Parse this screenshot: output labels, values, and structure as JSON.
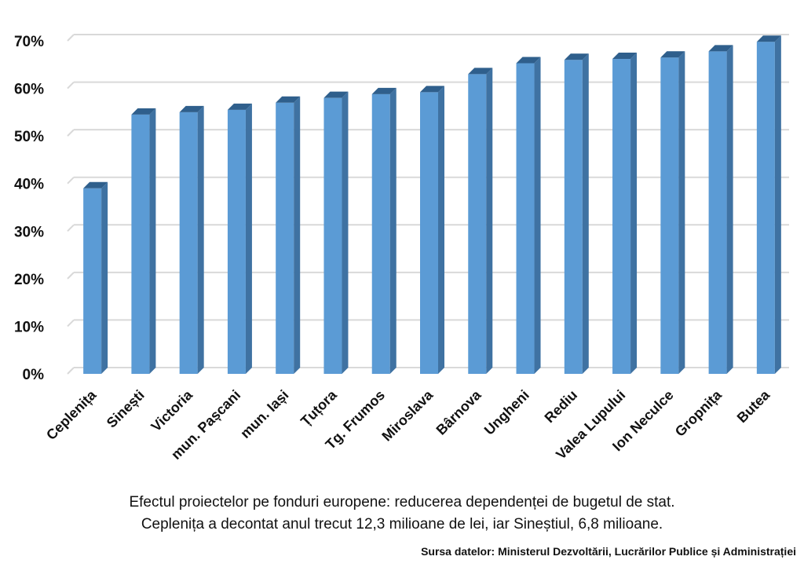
{
  "chart_data": {
    "type": "bar",
    "categories": [
      "Ceplenița",
      "Sinești",
      "Victoria",
      "mun. Pașcani",
      "mun. Iași",
      "Țuțora",
      "Tg. Frumos",
      "Miroslava",
      "Bârnova",
      "Ungheni",
      "Rediu",
      "Valea Lupului",
      "Ion Neculce",
      "Gropnița",
      "Butea"
    ],
    "values": [
      39,
      54.5,
      55,
      55.5,
      57,
      58,
      58.8,
      59.2,
      63,
      65.3,
      66,
      66.2,
      66.5,
      67.8,
      69.8
    ],
    "ylim": [
      0,
      70
    ],
    "yticks": [
      "0%",
      "10%",
      "20%",
      "30%",
      "40%",
      "50%",
      "60%",
      "70%"
    ],
    "grid": true,
    "legend": "none",
    "colors": {
      "bar_front": "#5b9bd5",
      "bar_side": "#3f72a2",
      "bar_top": "#2f5f8c",
      "grid": "#d9d9d9"
    }
  },
  "caption": {
    "line1": "Efectul proiectelor pe fonduri europene: reducerea dependenței de bugetul de stat.",
    "line2": "Ceplenița a decontat anul trecut 12,3 milioane de lei, iar Sineștiul, 6,8 milioane."
  },
  "source": "Sursa datelor: Ministerul Dezvoltării, Lucrărilor Publice și Administrației"
}
